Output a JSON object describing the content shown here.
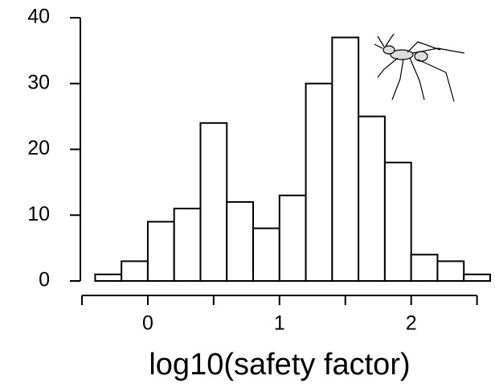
{
  "chart_data": {
    "type": "histogram",
    "xlabel": "log10(safety factor)",
    "bins": [
      -0.4,
      -0.2,
      0,
      0.2,
      0.4,
      0.6,
      0.8,
      1.0,
      1.2,
      1.4,
      1.6,
      1.8,
      2.0,
      2.2,
      2.4,
      2.6
    ],
    "values": [
      1,
      3,
      9,
      11,
      24,
      12,
      8,
      13,
      30,
      37,
      25,
      18,
      4,
      3,
      1
    ],
    "color": "#ffffff",
    "xlim": [
      -0.5,
      2.6
    ],
    "xticks": [
      {
        "value": -0.5,
        "label": null
      },
      0,
      {
        "value": 0.5,
        "label": null
      },
      1,
      {
        "value": 1.5,
        "label": null
      },
      2,
      {
        "value": 2.5,
        "label": null
      }
    ],
    "ylim": [
      0,
      40
    ],
    "yticks": [
      0,
      10,
      20,
      30,
      40
    ]
  }
}
